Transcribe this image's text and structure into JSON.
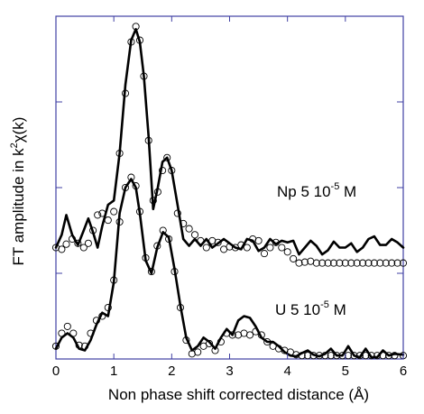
{
  "chart_data": {
    "type": "line",
    "title": "",
    "xlabel": "Non phase shift corrected distance (Å)",
    "ylabel": {
      "prefix": "FT amplitude in k",
      "sup": "2",
      "suffix": "χ(k)"
    },
    "xlim": [
      0,
      6
    ],
    "ylim": [
      0,
      4
    ],
    "x_ticks": [
      0,
      1,
      2,
      3,
      4,
      5,
      6
    ],
    "y_ticks": [
      0,
      1,
      2,
      3,
      4
    ],
    "y_tick_labels_shown": false,
    "grid": false,
    "legend": "none",
    "colors": {
      "axes": "#3f3fa3",
      "curve": "#000000"
    },
    "annotations": [
      {
        "id": "np",
        "pre": "Np  5 10",
        "sup": "-5",
        "post": " M"
      },
      {
        "id": "u",
        "pre": "U  5 10",
        "sup": "-5",
        "post": " M"
      }
    ],
    "series": [
      {
        "curve": "Np solid",
        "style": "solid",
        "x": [
          0,
          0.1,
          0.18,
          0.28,
          0.38,
          0.48,
          0.56,
          0.64,
          0.72,
          0.8,
          0.9,
          1.0,
          1.1,
          1.2,
          1.3,
          1.38,
          1.45,
          1.52,
          1.6,
          1.68,
          1.76,
          1.84,
          1.92,
          2.0,
          2.1,
          2.2,
          2.3,
          2.4,
          2.5,
          2.6,
          2.7,
          2.8,
          2.9,
          3.0,
          3.1,
          3.2,
          3.3,
          3.4,
          3.5,
          3.6,
          3.7,
          3.8,
          3.9,
          4.0,
          4.1,
          4.2,
          4.3,
          4.4,
          4.5,
          4.6,
          4.7,
          4.8,
          4.9,
          5.0,
          5.1,
          5.2,
          5.3,
          5.4,
          5.5,
          5.6,
          5.7,
          5.8,
          5.9,
          6.0
        ],
        "y": [
          1.3,
          1.45,
          1.68,
          1.45,
          1.33,
          1.5,
          1.64,
          1.48,
          1.3,
          1.55,
          1.8,
          1.85,
          2.4,
          3.2,
          3.72,
          3.85,
          3.7,
          3.3,
          2.6,
          1.75,
          2.0,
          2.3,
          2.35,
          2.2,
          1.8,
          1.4,
          1.32,
          1.4,
          1.32,
          1.4,
          1.3,
          1.35,
          1.4,
          1.35,
          1.3,
          1.28,
          1.4,
          1.38,
          1.26,
          1.3,
          1.4,
          1.34,
          1.38,
          1.36,
          1.38,
          1.22,
          1.3,
          1.38,
          1.32,
          1.22,
          1.27,
          1.37,
          1.3,
          1.3,
          1.35,
          1.25,
          1.3,
          1.4,
          1.43,
          1.33,
          1.33,
          1.4,
          1.36,
          1.3
        ]
      },
      {
        "curve": "Np open circles",
        "style": "circles",
        "x": [
          0,
          0.1,
          0.18,
          0.28,
          0.38,
          0.48,
          0.56,
          0.64,
          0.72,
          0.8,
          0.9,
          1.0,
          1.1,
          1.2,
          1.3,
          1.38,
          1.45,
          1.52,
          1.6,
          1.68,
          1.76,
          1.84,
          1.92,
          2.0,
          2.1,
          2.2,
          2.3,
          2.4,
          2.5,
          2.6,
          2.7,
          2.8,
          2.9,
          3.0,
          3.1,
          3.2,
          3.3,
          3.4,
          3.5,
          3.6,
          3.7,
          3.8,
          3.9,
          4.0,
          4.1,
          4.2,
          4.3,
          4.4,
          4.5,
          4.6,
          4.7,
          4.8,
          4.9,
          5.0,
          5.1,
          5.2,
          5.3,
          5.4,
          5.5,
          5.6,
          5.7,
          5.8,
          5.9,
          6.0
        ],
        "y": [
          1.3,
          1.28,
          1.34,
          1.4,
          1.35,
          1.3,
          1.35,
          1.5,
          1.68,
          1.7,
          1.62,
          1.72,
          2.4,
          3.1,
          3.7,
          3.88,
          3.72,
          3.3,
          2.55,
          1.85,
          1.95,
          2.2,
          2.35,
          2.2,
          1.7,
          1.58,
          1.52,
          1.45,
          1.38,
          1.3,
          1.38,
          1.36,
          1.28,
          1.31,
          1.3,
          1.33,
          1.3,
          1.4,
          1.38,
          1.23,
          1.3,
          1.36,
          1.3,
          1.25,
          1.17,
          1.12,
          1.13,
          1.14,
          1.12,
          1.12,
          1.12,
          1.12,
          1.12,
          1.12,
          1.12,
          1.12,
          1.12,
          1.12,
          1.12,
          1.12,
          1.12,
          1.12,
          1.12,
          1.12
        ]
      },
      {
        "curve": "U solid",
        "style": "solid",
        "x": [
          0,
          0.1,
          0.2,
          0.3,
          0.4,
          0.5,
          0.6,
          0.7,
          0.8,
          0.9,
          1.0,
          1.1,
          1.2,
          1.3,
          1.38,
          1.45,
          1.55,
          1.65,
          1.75,
          1.85,
          1.95,
          2.05,
          2.15,
          2.25,
          2.35,
          2.45,
          2.55,
          2.65,
          2.75,
          2.85,
          2.95,
          3.05,
          3.15,
          3.25,
          3.35,
          3.45,
          3.55,
          3.65,
          3.75,
          3.85,
          3.95,
          4.05,
          4.15,
          4.25,
          4.35,
          4.45,
          4.55,
          4.65,
          4.75,
          4.85,
          4.95,
          5.05,
          5.15,
          5.25,
          5.35,
          5.45,
          5.55,
          5.65,
          5.75,
          5.85,
          6.0
        ],
        "y": [
          0.12,
          0.25,
          0.3,
          0.25,
          0.12,
          0.1,
          0.22,
          0.4,
          0.54,
          0.5,
          0.9,
          1.7,
          2.0,
          2.1,
          2.0,
          1.7,
          1.15,
          1.0,
          1.3,
          1.48,
          1.42,
          1.05,
          0.62,
          0.25,
          0.1,
          0.15,
          0.25,
          0.2,
          0.12,
          0.25,
          0.35,
          0.28,
          0.45,
          0.5,
          0.48,
          0.38,
          0.25,
          0.2,
          0.2,
          0.15,
          0.08,
          0.04,
          0.03,
          0.07,
          0.1,
          0.05,
          0.03,
          0.06,
          0.12,
          0.04,
          0.04,
          0.15,
          0.04,
          0.02,
          0.12,
          0.02,
          0.02,
          0.1,
          0.04,
          0.06,
          0.05
        ]
      },
      {
        "curve": "U open circles",
        "style": "circles",
        "x": [
          0,
          0.1,
          0.2,
          0.3,
          0.4,
          0.5,
          0.6,
          0.7,
          0.8,
          0.9,
          1.0,
          1.1,
          1.2,
          1.3,
          1.38,
          1.45,
          1.55,
          1.65,
          1.75,
          1.85,
          1.95,
          2.05,
          2.15,
          2.25,
          2.35,
          2.45,
          2.55,
          2.65,
          2.75,
          2.85,
          2.95,
          3.05,
          3.15,
          3.25,
          3.35,
          3.45,
          3.55,
          3.65,
          3.75,
          3.85,
          3.95,
          4.05,
          4.15,
          4.25,
          4.35,
          4.45,
          4.55,
          4.65,
          4.75,
          4.85,
          4.95,
          5.05,
          5.15,
          5.25,
          5.35,
          5.45,
          5.55,
          5.65,
          5.75,
          5.85,
          6.0
        ],
        "y": [
          0.15,
          0.3,
          0.38,
          0.3,
          0.16,
          0.15,
          0.3,
          0.45,
          0.5,
          0.6,
          0.92,
          1.6,
          2.0,
          2.12,
          2.02,
          1.72,
          1.18,
          1.02,
          1.32,
          1.5,
          1.4,
          1.02,
          0.6,
          0.22,
          0.06,
          0.08,
          0.15,
          0.18,
          0.1,
          0.2,
          0.3,
          0.28,
          0.28,
          0.3,
          0.28,
          0.32,
          0.28,
          0.2,
          0.15,
          0.12,
          0.1,
          0.08,
          0.05,
          0.04,
          0.04,
          0.04,
          0.04,
          0.04,
          0.04,
          0.04,
          0.04,
          0.04,
          0.04,
          0.04,
          0.04,
          0.04,
          0.04,
          0.04,
          0.04,
          0.04,
          0.04
        ]
      }
    ]
  }
}
